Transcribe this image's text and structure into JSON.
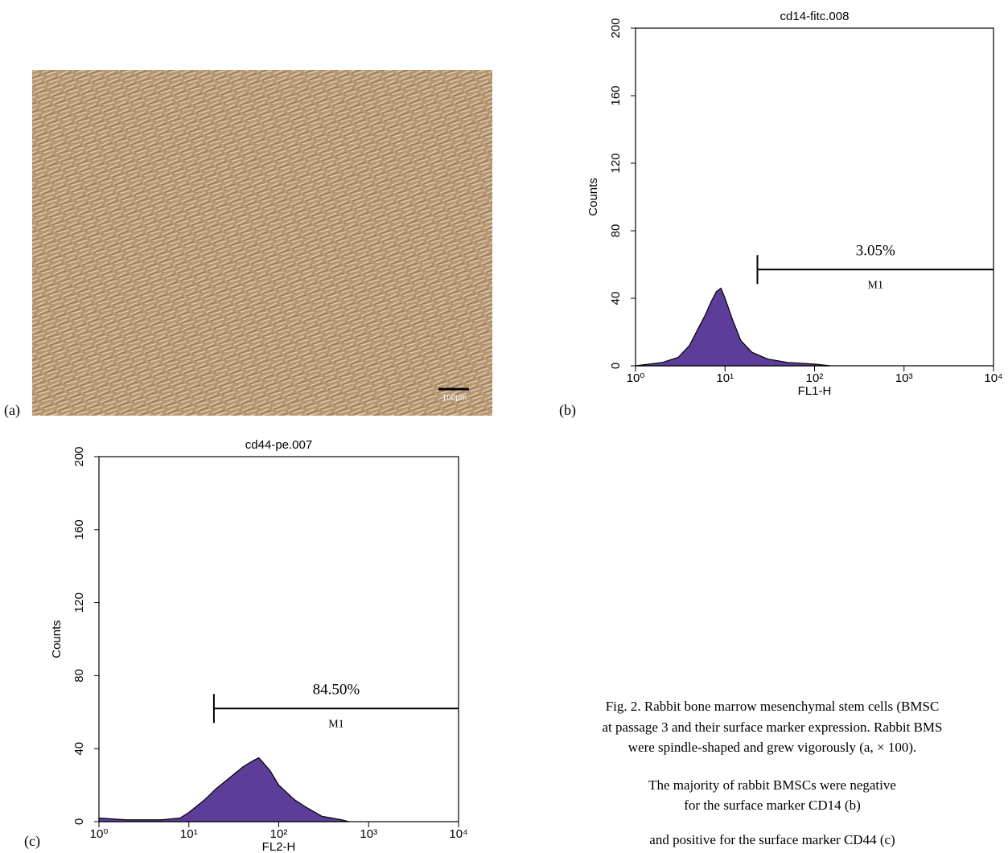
{
  "panel_labels": [
    "(a)",
    "(b)",
    "(c)"
  ],
  "scale_bar": "100µm",
  "caption": [
    "Fig. 2. Rabbit bone marrow mesenchymal stem cells (BMSC",
    "at passage 3 and their surface marker expression. Rabbit BMS",
    "were spindle-shaped and grew vigorously (a, × 100).",
    "The majority of rabbit BMSCs were negative",
    "for the surface marker CD14 (b)",
    "and positive for the surface marker CD44 (c)"
  ],
  "chart_data": [
    {
      "type": "area",
      "title": "cd14-fitc.008",
      "x_label": "FL1-H",
      "y_label": "Counts",
      "log_x": true,
      "color": "#5c3d99",
      "x": [
        1,
        2,
        3,
        4,
        5,
        6,
        7,
        8,
        9,
        10,
        12,
        15,
        20,
        30,
        50,
        100,
        150
      ],
      "values": [
        0,
        2,
        5,
        12,
        22,
        30,
        38,
        44,
        46,
        40,
        28,
        15,
        8,
        4,
        2,
        1,
        0
      ],
      "xlim": [
        1,
        10000
      ],
      "ylim": [
        0,
        200
      ],
      "xticks": [
        {
          "value": 1,
          "label": "10⁰"
        },
        {
          "value": 10,
          "label": "10¹"
        },
        {
          "value": 100,
          "label": "10²"
        },
        {
          "value": 1000,
          "label": "10³"
        },
        {
          "value": 10000,
          "label": "10⁴"
        }
      ],
      "yticks": [
        0,
        40,
        80,
        120,
        160,
        200
      ],
      "marker": {
        "name": "M1",
        "label": "3.05%",
        "range": [
          23,
          10000
        ],
        "y": 57
      }
    },
    {
      "type": "area",
      "title": "cd44-pe.007",
      "x_label": "FL2-H",
      "y_label": "Counts",
      "log_x": true,
      "color": "#5c3d99",
      "x": [
        1,
        2,
        5,
        8,
        10,
        15,
        20,
        30,
        40,
        50,
        60,
        80,
        100,
        150,
        200,
        300,
        500,
        600
      ],
      "values": [
        2,
        1,
        1,
        2,
        5,
        12,
        18,
        25,
        30,
        33,
        35,
        28,
        20,
        12,
        8,
        3,
        1,
        0
      ],
      "xlim": [
        1,
        10000
      ],
      "ylim": [
        0,
        200
      ],
      "xticks": [
        {
          "value": 1,
          "label": "10⁰"
        },
        {
          "value": 10,
          "label": "10¹"
        },
        {
          "value": 100,
          "label": "10²"
        },
        {
          "value": 1000,
          "label": "10³"
        },
        {
          "value": 10000,
          "label": "10⁴"
        }
      ],
      "yticks": [
        0,
        40,
        80,
        120,
        160,
        200
      ],
      "marker": {
        "name": "M1",
        "label": "84.50%",
        "range": [
          19,
          10000
        ],
        "y": 62
      }
    }
  ]
}
